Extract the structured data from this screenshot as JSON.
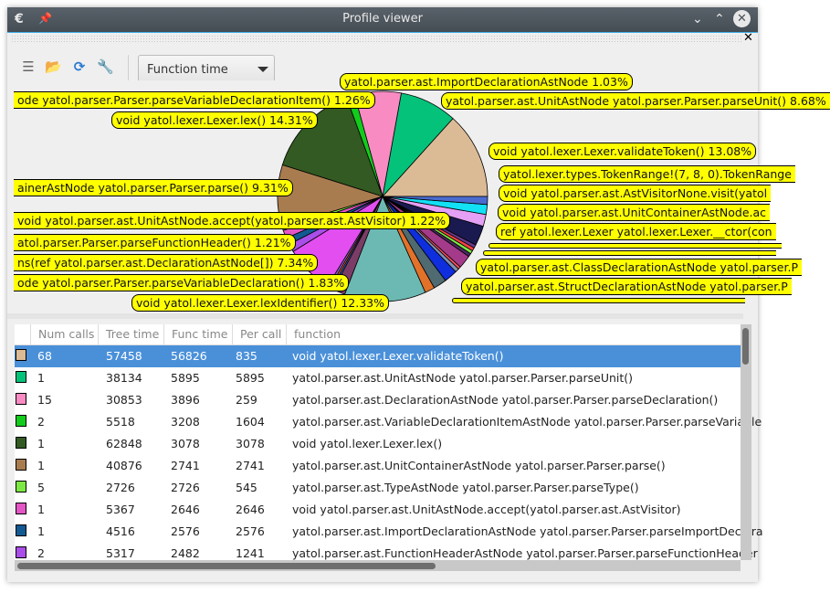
{
  "window": {
    "title": "Profile viewer"
  },
  "toolbar": {
    "icons": [
      "document-icon",
      "folder-open-icon",
      "refresh-icon",
      "wrench-icon"
    ],
    "mode_select": "Function time"
  },
  "chart_data": {
    "type": "pie",
    "measure": "Tree time",
    "start": "east, counterclockwise",
    "slices": [
      {
        "label": "void yatol.lexer.Lexer.validateToken()",
        "value": 13.08,
        "color": "#dbbb96"
      },
      {
        "label": "yatol.parser.ast.UnitAstNode yatol.parser.Parser.parseUnit()",
        "value": 8.68,
        "color": "#05c27a"
      },
      {
        "label": "yatol.parser.ast.DeclarationAstNode yatol.parser.Parser.parseDeclaration()",
        "value": 7.02,
        "color": "#f98bc3"
      },
      {
        "label": "parseVariableDeclarationItem()",
        "value": 1.26,
        "color": "#12cc1c"
      },
      {
        "label": "void yatol.lexer.Lexer.lex()",
        "value": 14.31,
        "color": "#325a22"
      },
      {
        "label": "yatol.parser.Parser.parse()",
        "value": 9.31,
        "color": "#a97c50"
      },
      {
        "label": "parseType()",
        "value": 0.62,
        "color": "#7de845"
      },
      {
        "label": "accept()",
        "value": 1.22,
        "color": "#e455c6"
      },
      {
        "label": "parseImportDeclaration()",
        "value": 1.03,
        "color": "#135a92"
      },
      {
        "label": "parseFunctionHeader()",
        "value": 1.21,
        "color": "#a94ee8"
      },
      {
        "label": "DeclarationAstNode[]",
        "value": 7.34,
        "color": "#e24ef0"
      },
      {
        "label": "",
        "value": 0.4,
        "color": "#8a5cc0"
      },
      {
        "label": "",
        "value": 0.3,
        "color": "#ff6a2a"
      },
      {
        "label": "",
        "value": 0.3,
        "color": "#2a6ae0"
      },
      {
        "label": "parseVariableDeclaration()",
        "value": 1.83,
        "color": "#7b3c66"
      },
      {
        "label": "void yatol.lexer.Lexer.lexIdentifier()",
        "value": 12.33,
        "color": "#6cb9b3"
      },
      {
        "label": "",
        "value": 1.5,
        "color": "#e2712a"
      },
      {
        "label": "",
        "value": 2.0,
        "color": "#4f6a70"
      },
      {
        "label": "",
        "value": 2.0,
        "color": "#0f2ede"
      },
      {
        "label": "",
        "value": 0.6,
        "color": "#8090b0"
      },
      {
        "label": "",
        "value": 0.4,
        "color": "#ff5060"
      },
      {
        "label": "",
        "value": 2.0,
        "color": "#a43a8a"
      },
      {
        "label": "",
        "value": 0.5,
        "color": "#4a2a60"
      },
      {
        "label": "",
        "value": 0.5,
        "color": "#7de845"
      },
      {
        "label": "",
        "value": 0.5,
        "color": "#ff4444"
      },
      {
        "label": "",
        "value": 0.5,
        "color": "#6a3a8a"
      },
      {
        "label": "",
        "value": 3.0,
        "color": "#1a1a50"
      },
      {
        "label": "",
        "value": 1.8,
        "color": "#e3a0f5"
      },
      {
        "label": "",
        "value": 1.5,
        "color": "#12e0f5"
      },
      {
        "label": "yatol.lexer.types.TokenRange!(7, 8, 0)",
        "value": 1.2,
        "color": "#4b6bd0"
      }
    ],
    "labels": [
      "yatol.parser.ast.ImportDeclarationAstNode 1.03%",
      "ode yatol.parser.Parser.parseVariableDeclarationItem() 1.26%",
      "void yatol.lexer.Lexer.lex() 14.31%",
      "ainerAstNode yatol.parser.Parser.parse() 9.31%",
      "void yatol.parser.ast.UnitAstNode.accept(yatol.parser.ast.AstVisitor) 1.22%",
      "atol.parser.Parser.parseFunctionHeader() 1.21%",
      "ns(ref yatol.parser.ast.DeclarationAstNode[]) 7.34%",
      "ode yatol.parser.Parser.parseVariableDeclaration() 1.83%",
      "void yatol.lexer.Lexer.lexIdentifier() 12.33%",
      "yatol.parser.ast.UnitAstNode yatol.parser.Parser.parseUnit() 8.68%",
      "void yatol.lexer.Lexer.validateToken() 13.08%",
      "yatol.lexer.types.TokenRange!(7, 8, 0).TokenRange",
      "void yatol.parser.ast.AstVisitorNone.visit(yatol",
      "void yatol.parser.ast.UnitContainerAstNode.ac",
      "ref yatol.lexer.Lexer yatol.lexer.Lexer.__ctor(con",
      "yatol.parser.ast.ClassDeclarationAstNode yatol.parser.P",
      "yatol.parser.ast.StructDeclarationAstNode yatol.parser.P"
    ]
  },
  "table": {
    "columns": [
      "",
      "Num calls",
      "Tree time",
      "Func time",
      "Per call",
      "function"
    ],
    "rows": [
      {
        "color": "#dbbb96",
        "calls": "68",
        "tree": "57458",
        "func": "56826",
        "per": "835",
        "fn": "void yatol.lexer.Lexer.validateToken()",
        "selected": true
      },
      {
        "color": "#05c27a",
        "calls": "1",
        "tree": "38134",
        "func": "5895",
        "per": "5895",
        "fn": "yatol.parser.ast.UnitAstNode yatol.parser.Parser.parseUnit()"
      },
      {
        "color": "#f98bc3",
        "calls": "15",
        "tree": "30853",
        "func": "3896",
        "per": "259",
        "fn": "yatol.parser.ast.DeclarationAstNode yatol.parser.Parser.parseDeclaration()"
      },
      {
        "color": "#12cc1c",
        "calls": "2",
        "tree": "5518",
        "func": "3208",
        "per": "1604",
        "fn": "yatol.parser.ast.VariableDeclarationItemAstNode yatol.parser.Parser.parseVariable"
      },
      {
        "color": "#325a22",
        "calls": "1",
        "tree": "62848",
        "func": "3078",
        "per": "3078",
        "fn": "void yatol.lexer.Lexer.lex()"
      },
      {
        "color": "#a97c50",
        "calls": "1",
        "tree": "40876",
        "func": "2741",
        "per": "2741",
        "fn": "yatol.parser.ast.UnitContainerAstNode yatol.parser.Parser.parse()"
      },
      {
        "color": "#7de845",
        "calls": "5",
        "tree": "2726",
        "func": "2726",
        "per": "545",
        "fn": "yatol.parser.ast.TypeAstNode yatol.parser.Parser.parseType()"
      },
      {
        "color": "#e455c6",
        "calls": "1",
        "tree": "5367",
        "func": "2646",
        "per": "2646",
        "fn": "void yatol.parser.ast.UnitAstNode.accept(yatol.parser.ast.AstVisitor)"
      },
      {
        "color": "#135a92",
        "calls": "1",
        "tree": "4516",
        "func": "2576",
        "per": "2576",
        "fn": "yatol.parser.ast.ImportDeclarationAstNode yatol.parser.Parser.parseImportDeclara"
      },
      {
        "color": "#a94ee8",
        "calls": "2",
        "tree": "5317",
        "func": "2482",
        "per": "1241",
        "fn": "yatol.parser.ast.FunctionHeaderAstNode yatol.parser.Parser.parseFunctionHeader"
      }
    ]
  }
}
